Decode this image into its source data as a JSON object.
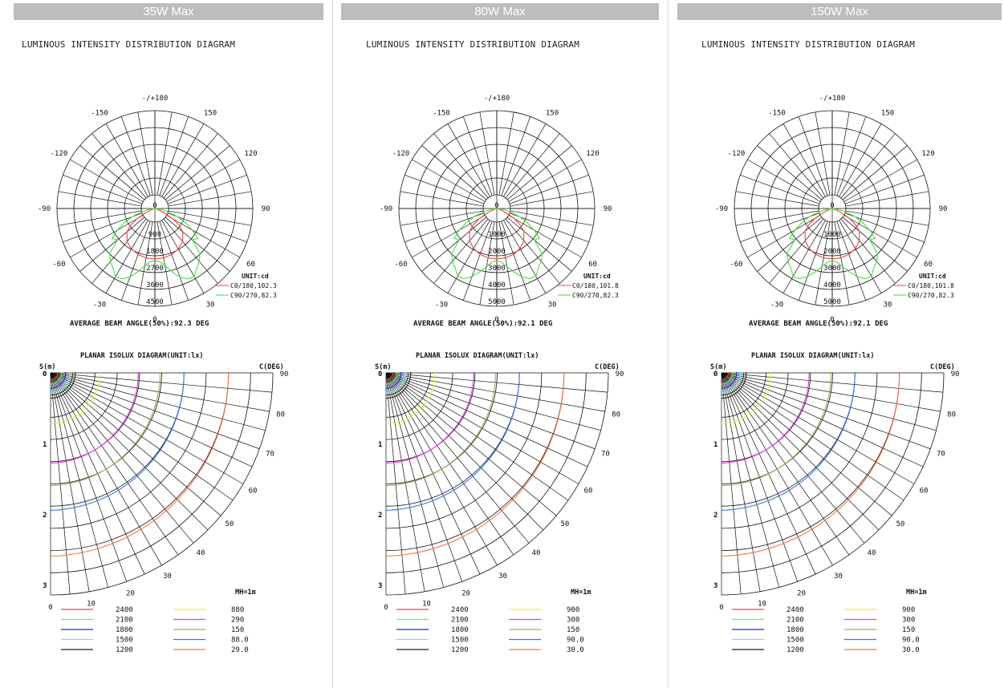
{
  "panels": [
    {
      "header": "35W Max",
      "polar_title": "LUMINOUS INTENSITY DISTRIBUTION DIAGRAM",
      "beam_text": "AVERAGE BEAM ANGLE(50%):92.3 DEG",
      "isolux_title": "PLANAR ISOLUX DIAGRAM(UNIT:lx)",
      "legend_top": [
        {
          "label": "2400",
          "color": "#ff3b3b"
        },
        {
          "label": "2100",
          "color": "#66ee66"
        },
        {
          "label": "1800",
          "color": "#2222ee"
        },
        {
          "label": "1500",
          "color": "#55eeee"
        },
        {
          "label": "1200",
          "color": "#222222"
        }
      ],
      "legend_right": [
        {
          "label": "880",
          "color": "#eeee33"
        },
        {
          "label": "290",
          "color": "#ee33ee"
        },
        {
          "label": "150",
          "color": "#aaaa55"
        },
        {
          "label": "88.0",
          "color": "#3377ee"
        },
        {
          "label": "29.0",
          "color": "#ff7744"
        }
      ]
    },
    {
      "header": "80W Max",
      "polar_title": "LUMINOUS INTENSITY DISTRIBUTION DIAGRAM",
      "beam_text": "AVERAGE BEAM ANGLE(50%):92.1 DEG",
      "isolux_title": "PLANAR ISOLUX DIAGRAM(UNIT:lx)",
      "legend_top": [
        {
          "label": "2400",
          "color": "#ff3b3b"
        },
        {
          "label": "2100",
          "color": "#66ee66"
        },
        {
          "label": "1800",
          "color": "#2222ee"
        },
        {
          "label": "1500",
          "color": "#55eeee"
        },
        {
          "label": "1200",
          "color": "#222222"
        }
      ],
      "legend_right": [
        {
          "label": "900",
          "color": "#eeee33"
        },
        {
          "label": "300",
          "color": "#ee33ee"
        },
        {
          "label": "150",
          "color": "#aaaa55"
        },
        {
          "label": "90.0",
          "color": "#3377ee"
        },
        {
          "label": "30.0",
          "color": "#ff7744"
        }
      ]
    },
    {
      "header": "150W Max",
      "polar_title": "LUMINOUS INTENSITY DISTRIBUTION DIAGRAM",
      "beam_text": "AVERAGE BEAM ANGLE(50%):92.1 DEG",
      "isolux_title": "PLANAR ISOLUX DIAGRAM(UNIT:lx)",
      "legend_top": [
        {
          "label": "2400",
          "color": "#ff3b3b"
        },
        {
          "label": "2100",
          "color": "#66ee66"
        },
        {
          "label": "1800",
          "color": "#2222ee"
        },
        {
          "label": "1500",
          "color": "#55eeee"
        },
        {
          "label": "1200",
          "color": "#222222"
        }
      ],
      "legend_right": [
        {
          "label": "900",
          "color": "#eeee33"
        },
        {
          "label": "300",
          "color": "#ee33ee"
        },
        {
          "label": "150",
          "color": "#aaaa55"
        },
        {
          "label": "90.0",
          "color": "#3377ee"
        },
        {
          "label": "30.0",
          "color": "#ff7744"
        }
      ]
    }
  ],
  "chart_data": [
    {
      "type": "polar",
      "panel": "35W Max",
      "title": "LUMINOUS INTENSITY DISTRIBUTION DIAGRAM",
      "angle_labels": [
        "-/+180",
        "150",
        "120",
        "90",
        "60",
        "30",
        "0",
        "-30",
        "-60",
        "-90",
        "-120",
        "-150"
      ],
      "radial_ticks": [
        "0",
        "900",
        "1800",
        "2700",
        "3600",
        "4500"
      ],
      "rmax": 4500,
      "unit": "UNIT:cd",
      "series": [
        {
          "name": "C0/180,102.3",
          "color": "#ff3b3b",
          "points": [
            [
              0,
              2700
            ],
            [
              10,
              2680
            ],
            [
              20,
              2620
            ],
            [
              30,
              2500
            ],
            [
              40,
              2300
            ],
            [
              50,
              1950
            ],
            [
              55,
              1600
            ],
            [
              60,
              1100
            ],
            [
              65,
              550
            ],
            [
              70,
              180
            ],
            [
              80,
              30
            ],
            [
              90,
              0
            ]
          ]
        },
        {
          "name": "C90/270,82.3",
          "color": "#44dd44",
          "points": [
            [
              0,
              2800
            ],
            [
              5,
              2850
            ],
            [
              10,
              3100
            ],
            [
              15,
              3500
            ],
            [
              20,
              3900
            ],
            [
              25,
              4150
            ],
            [
              30,
              4200
            ],
            [
              35,
              3900
            ],
            [
              40,
              3700
            ],
            [
              45,
              3400
            ],
            [
              50,
              2600
            ],
            [
              55,
              2800
            ],
            [
              60,
              2300
            ],
            [
              65,
              1800
            ],
            [
              70,
              1300
            ],
            [
              75,
              800
            ],
            [
              80,
              400
            ],
            [
              85,
              150
            ],
            [
              90,
              0
            ]
          ]
        }
      ],
      "beam_angle": "AVERAGE BEAM ANGLE(50%):92.3 DEG"
    },
    {
      "type": "polar",
      "panel": "80W Max",
      "title": "LUMINOUS INTENSITY DISTRIBUTION DIAGRAM",
      "angle_labels": [
        "-/+180",
        "150",
        "120",
        "90",
        "60",
        "30",
        "0",
        "-30",
        "-60",
        "-90",
        "-120",
        "-150"
      ],
      "radial_ticks": [
        "0",
        "1000",
        "2000",
        "3000",
        "4000",
        "5000"
      ],
      "rmax": 5000,
      "unit": "UNIT:cd",
      "series": [
        {
          "name": "C0/180,101.8",
          "color": "#ff3b3b",
          "points": [
            [
              0,
              3000
            ],
            [
              10,
              2980
            ],
            [
              20,
              2900
            ],
            [
              30,
              2750
            ],
            [
              40,
              2500
            ],
            [
              50,
              2100
            ],
            [
              55,
              1700
            ],
            [
              60,
              1200
            ],
            [
              65,
              600
            ],
            [
              70,
              200
            ],
            [
              80,
              30
            ],
            [
              90,
              0
            ]
          ]
        },
        {
          "name": "C90/270,82.3",
          "color": "#44dd44",
          "points": [
            [
              0,
              3100
            ],
            [
              5,
              3200
            ],
            [
              10,
              3500
            ],
            [
              15,
              3900
            ],
            [
              20,
              4300
            ],
            [
              25,
              4600
            ],
            [
              30,
              4650
            ],
            [
              35,
              4300
            ],
            [
              40,
              4100
            ],
            [
              45,
              3800
            ],
            [
              50,
              2900
            ],
            [
              55,
              3100
            ],
            [
              60,
              2550
            ],
            [
              65,
              2000
            ],
            [
              70,
              1450
            ],
            [
              75,
              900
            ],
            [
              80,
              450
            ],
            [
              85,
              160
            ],
            [
              90,
              0
            ]
          ]
        }
      ],
      "beam_angle": "AVERAGE BEAM ANGLE(50%):92.1 DEG"
    },
    {
      "type": "polar",
      "panel": "150W Max",
      "title": "LUMINOUS INTENSITY DISTRIBUTION DIAGRAM",
      "angle_labels": [
        "-/+180",
        "150",
        "120",
        "90",
        "60",
        "30",
        "0",
        "-30",
        "-60",
        "-90",
        "-120",
        "-150"
      ],
      "radial_ticks": [
        "0",
        "1000",
        "2000",
        "3000",
        "4000",
        "5000"
      ],
      "rmax": 5000,
      "unit": "UNIT:cd",
      "series": [
        {
          "name": "C0/180,101.8",
          "color": "#ff3b3b",
          "points": [
            [
              0,
              3000
            ],
            [
              10,
              2980
            ],
            [
              20,
              2900
            ],
            [
              30,
              2750
            ],
            [
              40,
              2500
            ],
            [
              50,
              2100
            ],
            [
              55,
              1700
            ],
            [
              60,
              1200
            ],
            [
              65,
              600
            ],
            [
              70,
              200
            ],
            [
              80,
              30
            ],
            [
              90,
              0
            ]
          ]
        },
        {
          "name": "C90/270,82.3",
          "color": "#44dd44",
          "points": [
            [
              0,
              3100
            ],
            [
              5,
              3200
            ],
            [
              10,
              3500
            ],
            [
              15,
              3900
            ],
            [
              20,
              4300
            ],
            [
              25,
              4600
            ],
            [
              30,
              4650
            ],
            [
              35,
              4300
            ],
            [
              40,
              4100
            ],
            [
              45,
              3800
            ],
            [
              50,
              2900
            ],
            [
              55,
              3100
            ],
            [
              60,
              2550
            ],
            [
              65,
              2000
            ],
            [
              70,
              1450
            ],
            [
              75,
              900
            ],
            [
              80,
              450
            ],
            [
              85,
              160
            ],
            [
              90,
              0
            ]
          ]
        }
      ],
      "beam_angle": "AVERAGE BEAM ANGLE(50%):92.1 DEG"
    },
    {
      "type": "isolux",
      "panel": "35W Max",
      "title": "PLANAR ISOLUX DIAGRAM(UNIT:lx)",
      "y_axis_label": "S(m)",
      "angle_axis_label": "C(DEG)",
      "s_ticks": [
        "0",
        "1",
        "2",
        "3"
      ],
      "smax": 3.15,
      "angle_ticks": [
        "0",
        "10",
        "20",
        "30",
        "40",
        "50",
        "60",
        "70",
        "80",
        "90"
      ],
      "mounting_height": "MH=1m",
      "levels": [
        {
          "label": "2400",
          "radius": 0.1,
          "color": "#ff3b3b"
        },
        {
          "label": "2100",
          "radius": 0.16,
          "color": "#66ee66"
        },
        {
          "label": "1800",
          "radius": 0.22,
          "color": "#2222ee"
        },
        {
          "label": "1500",
          "radius": 0.28,
          "color": "#55eeee"
        },
        {
          "label": "1200",
          "radius": 0.36,
          "color": "#222222"
        },
        {
          "label": "880",
          "radius": 0.72,
          "color": "#eeee33"
        },
        {
          "label": "290",
          "radius": 1.28,
          "color": "#ee33ee"
        },
        {
          "label": "150",
          "radius": 1.6,
          "color": "#aaaa55"
        },
        {
          "label": "88.0",
          "radius": 1.95,
          "color": "#3377ee"
        },
        {
          "label": "29.0",
          "radius": 2.6,
          "color": "#ff7744"
        }
      ]
    },
    {
      "type": "isolux",
      "panel": "80W Max",
      "title": "PLANAR ISOLUX DIAGRAM(UNIT:lx)",
      "y_axis_label": "S(m)",
      "angle_axis_label": "C(DEG)",
      "s_ticks": [
        "0",
        "1",
        "2",
        "3"
      ],
      "smax": 3.15,
      "angle_ticks": [
        "0",
        "10",
        "20",
        "30",
        "40",
        "50",
        "60",
        "70",
        "80",
        "90"
      ],
      "mounting_height": "MH=1m",
      "levels": [
        {
          "label": "2400",
          "radius": 0.1,
          "color": "#ff3b3b"
        },
        {
          "label": "2100",
          "radius": 0.16,
          "color": "#66ee66"
        },
        {
          "label": "1800",
          "radius": 0.22,
          "color": "#2222ee"
        },
        {
          "label": "1500",
          "radius": 0.28,
          "color": "#55eeee"
        },
        {
          "label": "1200",
          "radius": 0.36,
          "color": "#222222"
        },
        {
          "label": "900",
          "radius": 0.72,
          "color": "#eeee33"
        },
        {
          "label": "300",
          "radius": 1.28,
          "color": "#ee33ee"
        },
        {
          "label": "150",
          "radius": 1.6,
          "color": "#aaaa55"
        },
        {
          "label": "90.0",
          "radius": 1.95,
          "color": "#3377ee"
        },
        {
          "label": "30.0",
          "radius": 2.6,
          "color": "#ff7744"
        }
      ]
    },
    {
      "type": "isolux",
      "panel": "150W Max",
      "title": "PLANAR ISOLUX DIAGRAM(UNIT:lx)",
      "y_axis_label": "S(m)",
      "angle_axis_label": "C(DEG)",
      "s_ticks": [
        "0",
        "1",
        "2",
        "3"
      ],
      "smax": 3.15,
      "angle_ticks": [
        "0",
        "10",
        "20",
        "30",
        "40",
        "50",
        "60",
        "70",
        "80",
        "90"
      ],
      "mounting_height": "MH=1m",
      "levels": [
        {
          "label": "2400",
          "radius": 0.1,
          "color": "#ff3b3b"
        },
        {
          "label": "2100",
          "radius": 0.16,
          "color": "#66ee66"
        },
        {
          "label": "1800",
          "radius": 0.22,
          "color": "#2222ee"
        },
        {
          "label": "1500",
          "radius": 0.28,
          "color": "#55eeee"
        },
        {
          "label": "1200",
          "radius": 0.36,
          "color": "#222222"
        },
        {
          "label": "900",
          "radius": 0.72,
          "color": "#eeee33"
        },
        {
          "label": "300",
          "radius": 1.28,
          "color": "#ee33ee"
        },
        {
          "label": "150",
          "radius": 1.6,
          "color": "#aaaa55"
        },
        {
          "label": "90.0",
          "radius": 1.95,
          "color": "#3377ee"
        },
        {
          "label": "30.0",
          "radius": 2.6,
          "color": "#ff7744"
        }
      ]
    }
  ]
}
